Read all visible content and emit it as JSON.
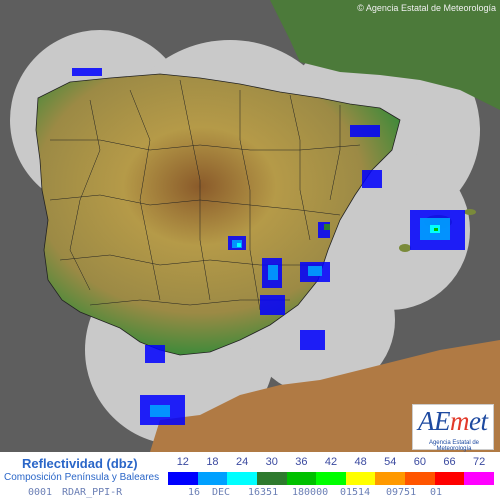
{
  "copyright": "© Agencia Estatal de Meteorología",
  "colors": {
    "sea": "#5e5e5e",
    "radar_coverage": "#c9c9c9",
    "land_low": "#3f8a3a",
    "land_mid": "#b59a48",
    "land_high": "#8a5a2a",
    "africa": "#b07a44",
    "france": "#4c7a3a"
  },
  "logo": {
    "main_prefix": "AE",
    "main_highlight": "m",
    "main_suffix": "et",
    "subtitle": "Agencia Estatal de Meteorología"
  },
  "legend": {
    "title": "Reflectividad (dbz)",
    "subtitle": "Composición Península y Baleares",
    "values": [
      "12",
      "18",
      "24",
      "30",
      "36",
      "42",
      "48",
      "54",
      "60",
      "66",
      "72"
    ],
    "colors": [
      "#0000ff",
      "#00a0ff",
      "#00ffff",
      "#2e7a2e",
      "#00c000",
      "#00ff00",
      "#ffff00",
      "#ff9900",
      "#ff5500",
      "#ff0000",
      "#ff00ff"
    ]
  },
  "status": {
    "id": "0001",
    "product": "RDAR_PPI-R",
    "day": "16",
    "month": "DEC",
    "code1": "16351",
    "code2": "180000",
    "code3": "01514",
    "code4": "09751",
    "code5": "01"
  }
}
